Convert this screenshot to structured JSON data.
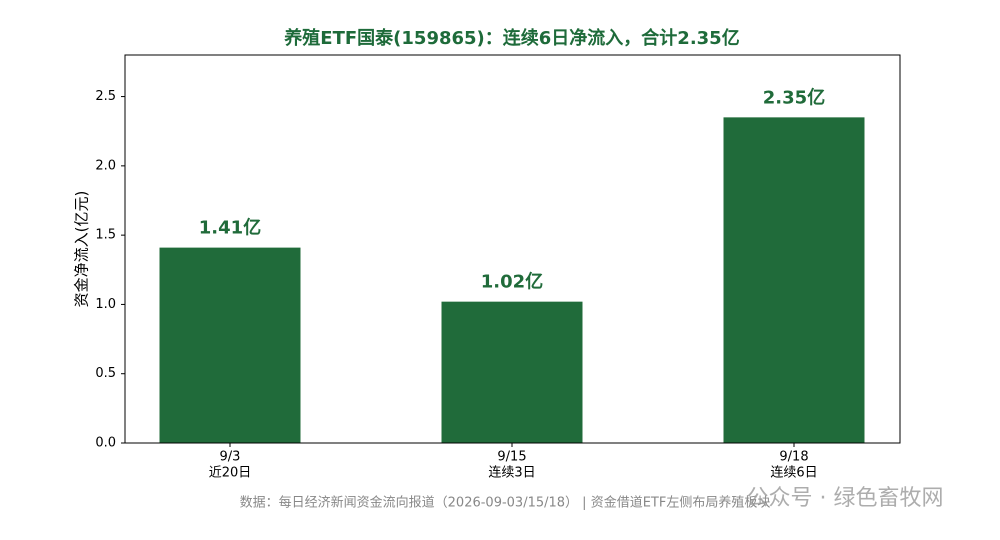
{
  "chart_data": {
    "type": "bar",
    "title": "养殖ETF国泰(159865)：连续6日净流入，合计2.35亿",
    "y_label": "资金净流入(亿元)",
    "categories": [
      "9/3",
      "9/15",
      "9/18"
    ],
    "category_notes": [
      "近20日",
      "连续3日",
      "连续6日"
    ],
    "values": [
      1.41,
      1.02,
      2.35
    ],
    "value_labels": [
      "1.41亿",
      "1.02亿",
      "2.35亿"
    ],
    "color": "#206b3a",
    "ylim": [
      0,
      2.8
    ],
    "yticks": [
      {
        "value": 0,
        "label": "0.0"
      },
      0.5,
      {
        "value": 1,
        "label": "1.0"
      },
      1.5,
      {
        "value": 2,
        "label": "2.0"
      },
      2.5
    ],
    "footnote": "数据：每日经济新闻资金流向报道（2026-09-03/15/18） | 资金借道ETF左侧布局养殖板块",
    "watermark": "公众号 · 绿色畜牧网"
  }
}
